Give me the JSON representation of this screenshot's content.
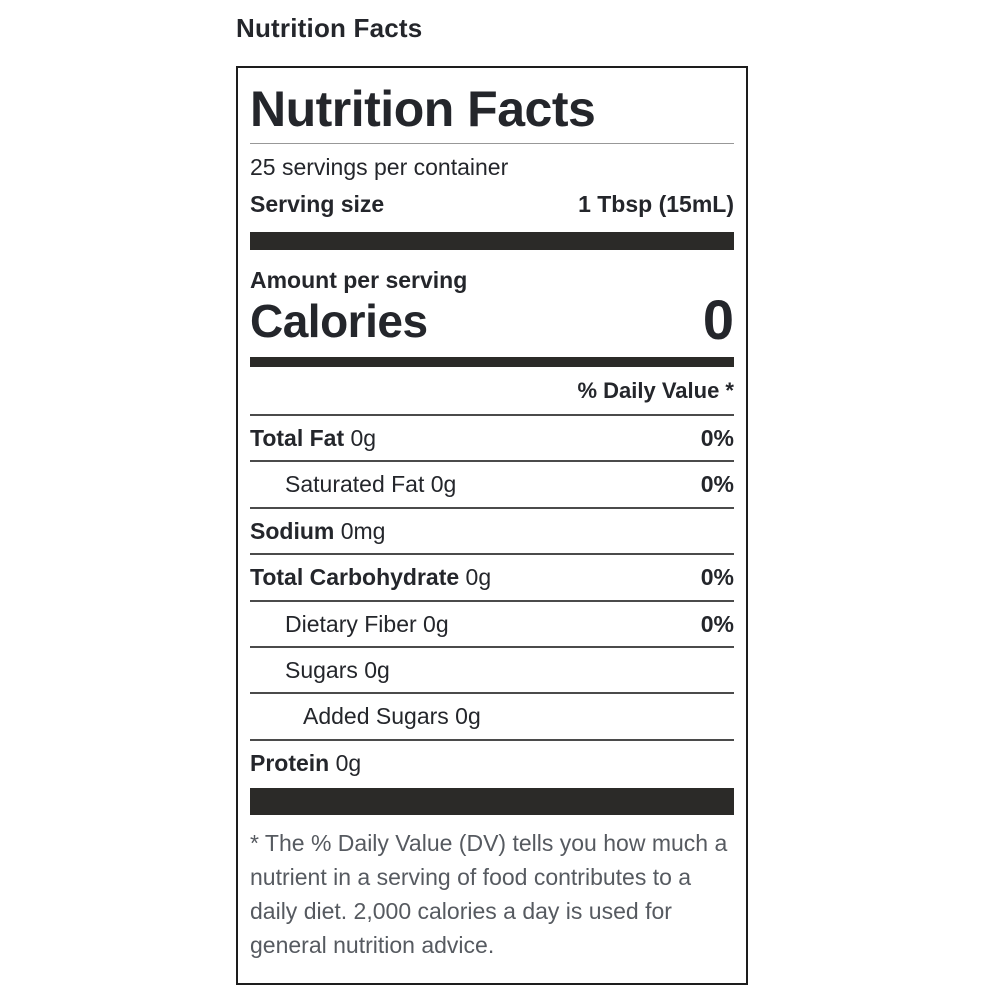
{
  "page": {
    "heading": "Nutrition Facts"
  },
  "label": {
    "title": "Nutrition Facts",
    "servings_per_container": "25 servings per container",
    "serving_size_label": "Serving size",
    "serving_size_value": "1 Tbsp (15mL)",
    "amount_per_serving": "Amount per serving",
    "calories_label": "Calories",
    "calories_value": "0",
    "daily_value_header": "% Daily Value *",
    "rows": [
      {
        "name": "Total Fat",
        "amount": "0g",
        "dv": "0%",
        "bold": true,
        "indent": 0
      },
      {
        "name": "Saturated Fat",
        "amount": "0g",
        "dv": "0%",
        "bold": false,
        "indent": 1
      },
      {
        "name": "Sodium",
        "amount": "0mg",
        "dv": "",
        "bold": true,
        "indent": 0
      },
      {
        "name": "Total Carbohydrate",
        "amount": "0g",
        "dv": "0%",
        "bold": true,
        "indent": 0
      },
      {
        "name": "Dietary Fiber",
        "amount": "0g",
        "dv": "0%",
        "bold": false,
        "indent": 1
      },
      {
        "name": "Sugars",
        "amount": "0g",
        "dv": "",
        "bold": false,
        "indent": 1
      },
      {
        "name": "Added Sugars",
        "amount": "0g",
        "dv": "",
        "bold": false,
        "indent": 2
      },
      {
        "name": "Protein",
        "amount": "0g",
        "dv": "",
        "bold": true,
        "indent": 0
      }
    ],
    "footnote": "* The % Daily Value (DV) tells you how much a nutrient in a serving of food contributes to a daily diet. 2,000 calories a day is used for general nutrition advice.",
    "colors": {
      "text": "#24262b",
      "bar": "#2b2a28",
      "border": "#1d1d1d",
      "divider": "#4b4b4b",
      "footnote_text": "#565a60"
    }
  }
}
